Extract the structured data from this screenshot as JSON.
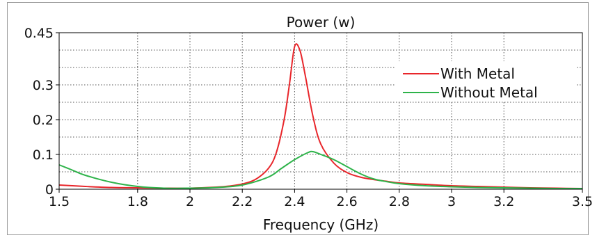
{
  "chart_data": {
    "type": "line",
    "title": "Power (w)",
    "xlabel": "Frequency (GHz)",
    "ylabel": "",
    "xlim": [
      1.5,
      3.5
    ],
    "ylim": [
      0,
      0.45
    ],
    "x_ticks": [
      1.5,
      1.8,
      2,
      2.2,
      2.4,
      2.6,
      2.8,
      3,
      3.2,
      3.5
    ],
    "y_ticks": [
      0,
      0.1,
      0.2,
      0.3,
      0.45
    ],
    "x_tick_labels": [
      "1.5",
      "1.8",
      "2",
      "2.2",
      "2.4",
      "2.6",
      "2.8",
      "3",
      "3.2",
      "3.5"
    ],
    "y_tick_labels": [
      "0",
      "0.1",
      "0.2",
      "0.3",
      "0.45"
    ],
    "grid": true,
    "legend_position": "top-right",
    "series": [
      {
        "name": "With Metal",
        "color": "#e8262b",
        "x": [
          1.5,
          1.6,
          1.7,
          1.8,
          1.9,
          2.0,
          2.1,
          2.15,
          2.2,
          2.25,
          2.3,
          2.33,
          2.36,
          2.38,
          2.4,
          2.42,
          2.44,
          2.47,
          2.5,
          2.55,
          2.6,
          2.65,
          2.7,
          2.75,
          2.8,
          2.9,
          3.0,
          3.1,
          3.2,
          3.3,
          3.4,
          3.5
        ],
        "y": [
          0.012,
          0.008,
          0.005,
          0.004,
          0.003,
          0.003,
          0.006,
          0.009,
          0.015,
          0.028,
          0.06,
          0.105,
          0.2,
          0.3,
          0.41,
          0.4,
          0.33,
          0.21,
          0.13,
          0.075,
          0.048,
          0.035,
          0.028,
          0.023,
          0.018,
          0.014,
          0.01,
          0.008,
          0.006,
          0.004,
          0.003,
          0.002
        ]
      },
      {
        "name": "Without Metal",
        "color": "#2eb34a",
        "x": [
          1.5,
          1.55,
          1.6,
          1.7,
          1.8,
          1.9,
          2.0,
          2.1,
          2.2,
          2.3,
          2.35,
          2.4,
          2.45,
          2.47,
          2.5,
          2.55,
          2.6,
          2.65,
          2.7,
          2.75,
          2.8,
          2.9,
          3.0,
          3.1,
          3.2,
          3.3,
          3.4,
          3.5
        ],
        "y": [
          0.07,
          0.055,
          0.04,
          0.02,
          0.008,
          0.003,
          0.003,
          0.005,
          0.012,
          0.035,
          0.06,
          0.085,
          0.105,
          0.108,
          0.1,
          0.085,
          0.065,
          0.045,
          0.03,
          0.022,
          0.016,
          0.01,
          0.007,
          0.005,
          0.004,
          0.003,
          0.002,
          0.002
        ]
      }
    ]
  }
}
